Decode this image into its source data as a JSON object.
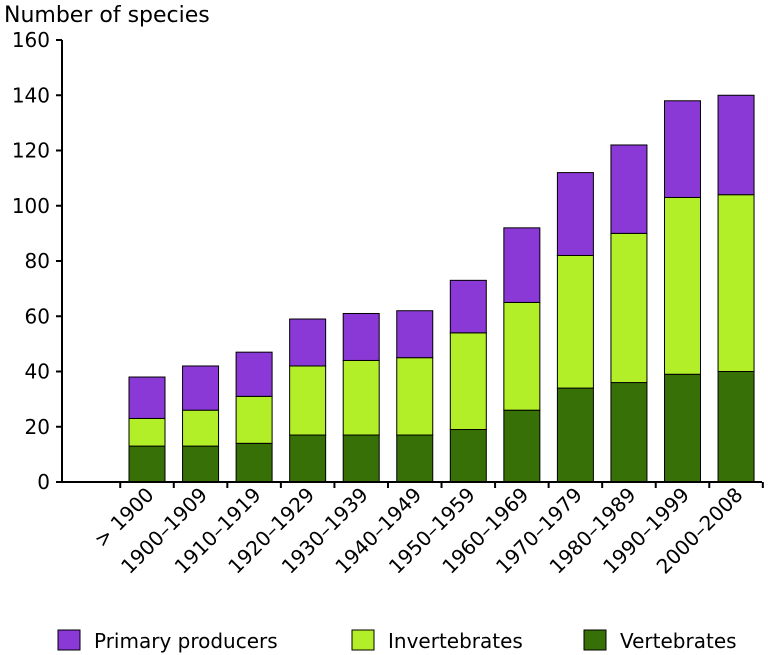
{
  "chart_data": {
    "type": "bar",
    "stacked": true,
    "title": "",
    "xlabel": "",
    "ylabel": "Number of species",
    "ylim": [
      0,
      160
    ],
    "yticks": [
      0,
      20,
      40,
      60,
      80,
      100,
      120,
      140,
      160
    ],
    "grid": false,
    "legend_position": "bottom",
    "categories": [
      "> 1900",
      "1900–1909",
      "1910–1919",
      "1920–1929",
      "1930–1939",
      "1940–1949",
      "1950–1959",
      "1960–1969",
      "1970–1979",
      "1980–1989",
      "1990–1999",
      "2000–2008"
    ],
    "series": [
      {
        "name": "Vertebrates",
        "color": "#367007",
        "values": [
          13,
          13,
          14,
          17,
          17,
          17,
          19,
          26,
          34,
          36,
          39,
          40
        ]
      },
      {
        "name": "Invertebrates",
        "color": "#b2ef29",
        "values": [
          10,
          13,
          17,
          25,
          27,
          28,
          35,
          39,
          48,
          54,
          64,
          64
        ]
      },
      {
        "name": "Primary producers",
        "color": "#8a38d6",
        "values": [
          15,
          16,
          16,
          17,
          17,
          17,
          19,
          27,
          30,
          32,
          35,
          36
        ]
      }
    ],
    "legend_order": [
      "Primary producers",
      "Invertebrates",
      "Vertebrates"
    ]
  }
}
